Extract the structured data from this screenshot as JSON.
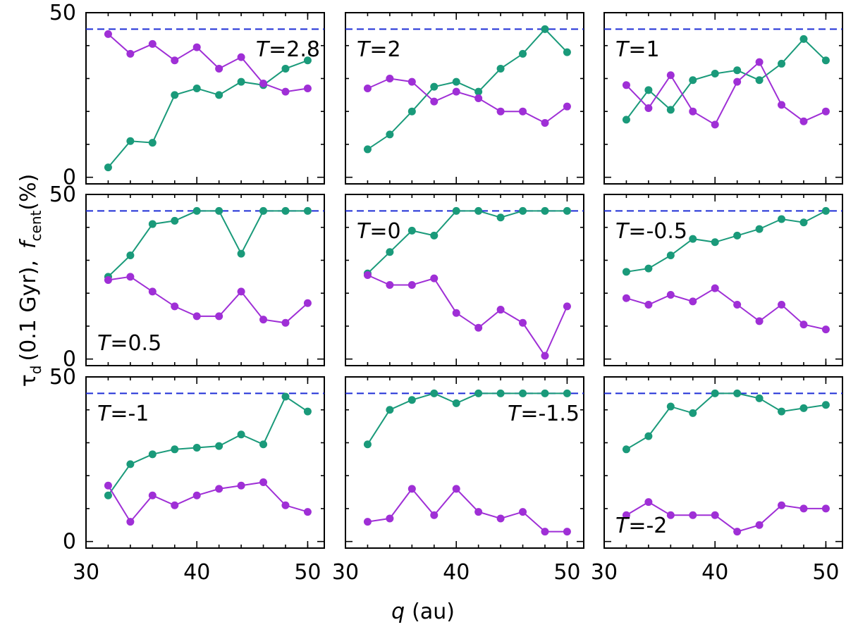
{
  "figure": {
    "ylabel": {
      "tau_symbol": "τ",
      "tau_sub": "d",
      "tau_units": "(0.1 Gyr),",
      "f_symbol": "f",
      "f_sub": "cent",
      "f_units": "(%)"
    },
    "xlabel": {
      "var": "q",
      "units": "(au)"
    },
    "x_ticks": [
      30,
      40,
      50
    ],
    "y_ticks": [
      0,
      50
    ],
    "xlim": [
      30,
      51.5
    ],
    "ylim": [
      -2,
      50
    ]
  },
  "chart_data": {
    "type": "line",
    "x": [
      32,
      34,
      36,
      38,
      40,
      42,
      44,
      46,
      48,
      50
    ],
    "colors": {
      "teal": "#1a9a7a",
      "purple": "#9f2fd6",
      "reference": "#1f2fd6"
    },
    "reference_line_value": 45,
    "panels": [
      {
        "label": "T=2.8",
        "label_T": "T",
        "label_val": "=2.8",
        "label_pos": "top-right",
        "series": [
          {
            "name": "teal",
            "values": [
              3,
              11,
              10.5,
              25,
              27,
              25,
              29,
              28,
              33,
              35.5
            ]
          },
          {
            "name": "purple",
            "values": [
              43.5,
              37.5,
              40.5,
              35.5,
              39.5,
              33,
              36.5,
              28.5,
              26,
              27
            ]
          }
        ]
      },
      {
        "label": "T=2",
        "label_T": "T",
        "label_val": "=2",
        "label_pos": "top-left",
        "series": [
          {
            "name": "teal",
            "values": [
              8.5,
              13,
              20,
              27.5,
              29,
              26,
              33,
              37.5,
              45,
              38
            ]
          },
          {
            "name": "purple",
            "values": [
              27,
              30,
              29,
              23,
              26,
              24,
              20,
              20,
              16.5,
              21.5
            ]
          }
        ]
      },
      {
        "label": "T=1",
        "label_T": "T",
        "label_val": "=1",
        "label_pos": "top-left",
        "series": [
          {
            "name": "teal",
            "values": [
              17.5,
              26.5,
              20.5,
              29.5,
              31.5,
              32.5,
              29.5,
              34.5,
              42,
              35.5
            ]
          },
          {
            "name": "purple",
            "values": [
              28,
              21,
              31,
              20,
              16,
              29,
              35,
              22,
              17,
              20
            ]
          }
        ]
      },
      {
        "label": "T=0.5",
        "label_T": "T",
        "label_val": "=0.5",
        "label_pos": "bottom-left",
        "series": [
          {
            "name": "teal",
            "values": [
              25,
              31.5,
              41,
              42,
              45,
              45,
              32,
              45,
              45,
              45
            ]
          },
          {
            "name": "purple",
            "values": [
              24,
              25,
              20.5,
              16,
              13,
              13,
              20.5,
              12,
              11,
              17
            ]
          }
        ]
      },
      {
        "label": "T=0",
        "label_T": "T",
        "label_val": "=0",
        "label_pos": "top-left",
        "series": [
          {
            "name": "teal",
            "values": [
              26,
              32.5,
              39,
              37.5,
              45,
              45,
              43,
              45,
              45,
              45
            ]
          },
          {
            "name": "purple",
            "values": [
              25.5,
              22.5,
              22.5,
              24.5,
              14,
              9.5,
              15,
              11,
              1,
              16
            ]
          }
        ]
      },
      {
        "label": "T=-0.5",
        "label_T": "T",
        "label_val": "=-0.5",
        "label_pos": "top-left",
        "series": [
          {
            "name": "teal",
            "values": [
              26.5,
              27.5,
              31.5,
              36.5,
              35.5,
              37.5,
              39.5,
              42.5,
              41.5,
              45
            ]
          },
          {
            "name": "purple",
            "values": [
              18.5,
              16.5,
              19.5,
              17.5,
              21.5,
              16.5,
              11.5,
              16.5,
              10.5,
              9
            ]
          }
        ]
      },
      {
        "label": "T=-1",
        "label_T": "T",
        "label_val": "=-1",
        "label_pos": "top-left",
        "series": [
          {
            "name": "teal",
            "values": [
              14,
              23.5,
              26.5,
              28,
              28.5,
              29,
              32.5,
              29.5,
              44,
              39.5
            ]
          },
          {
            "name": "purple",
            "values": [
              17,
              6,
              14,
              11,
              14,
              16,
              17,
              18,
              11,
              9
            ]
          }
        ]
      },
      {
        "label": "T=-1.5",
        "label_T": "T",
        "label_val": "=-1.5",
        "label_pos": "top-right",
        "series": [
          {
            "name": "teal",
            "values": [
              29.5,
              40,
              43,
              45,
              42,
              45,
              45,
              45,
              45,
              45
            ]
          },
          {
            "name": "purple",
            "values": [
              6,
              7,
              16,
              8,
              16,
              9,
              7,
              9,
              3,
              3
            ]
          }
        ]
      },
      {
        "label": "T=-2",
        "label_T": "T",
        "label_val": "=-2",
        "label_pos": "bottom-left",
        "series": [
          {
            "name": "teal",
            "values": [
              28,
              32,
              41,
              39,
              45,
              45,
              43.5,
              39.5,
              40.5,
              41.5
            ]
          },
          {
            "name": "purple",
            "values": [
              8,
              12,
              8,
              8,
              8,
              3,
              5,
              11,
              10,
              10
            ]
          }
        ]
      }
    ]
  }
}
